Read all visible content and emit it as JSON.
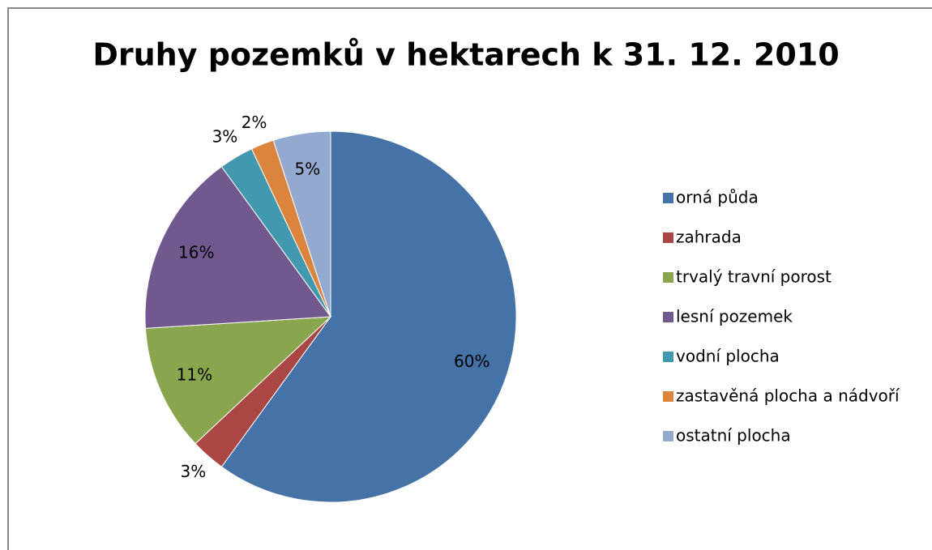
{
  "chart_data": {
    "type": "pie",
    "title": "Druhy pozemků v hektarech k 31. 12. 2010",
    "categories": [
      "orná půda",
      "zahrada",
      "trvalý travní porost",
      "lesní pozemek",
      "vodní plocha",
      "zastavěná plocha a nádvoří",
      "ostatní plocha"
    ],
    "values": [
      60,
      3,
      11,
      16,
      3,
      2,
      5
    ],
    "value_labels": [
      "60%",
      "3%",
      "11%",
      "16%",
      "3%",
      "2%",
      "5%"
    ],
    "colors": [
      "#4572a7",
      "#aa4643",
      "#89a54e",
      "#71588f",
      "#4198af",
      "#db843d",
      "#93a9cf"
    ],
    "legend": "right"
  }
}
